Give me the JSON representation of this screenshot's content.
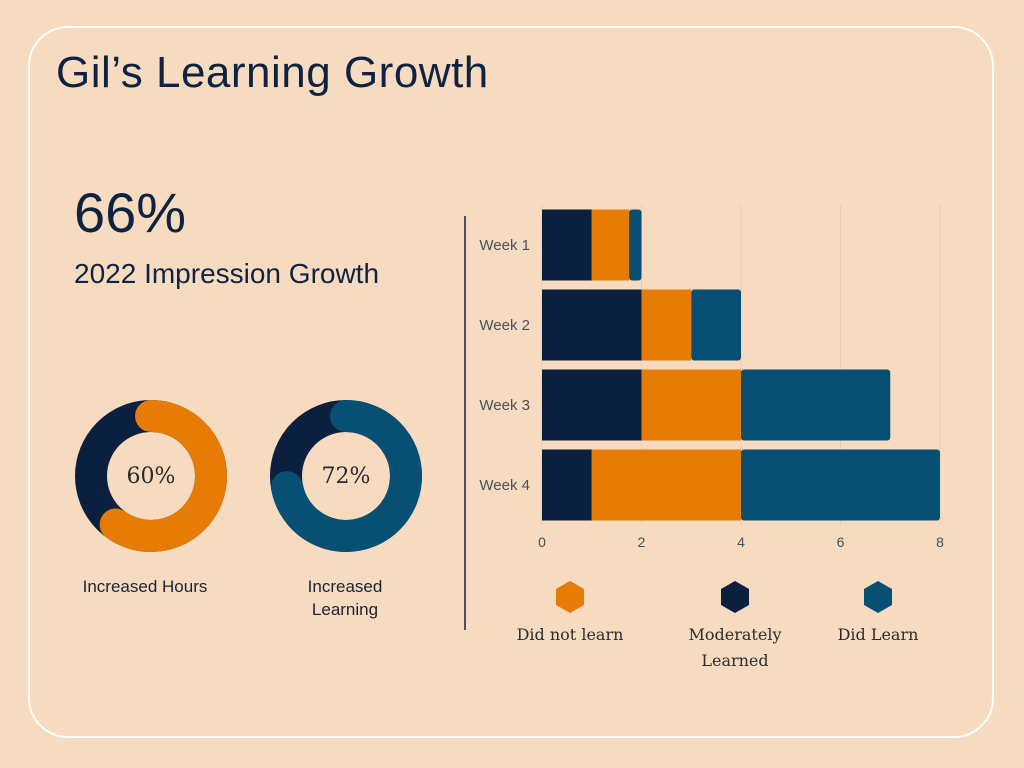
{
  "header": {
    "title": "Gil’s Learning Growth"
  },
  "highlight": {
    "value": "66%",
    "label": "2022 Impression Growth"
  },
  "donuts": [
    {
      "value_text": "60%",
      "fraction": 0.6,
      "caption": "Increased Hours",
      "color": "#e67c05"
    },
    {
      "value_text": "72%",
      "fraction": 0.72,
      "caption": "Increased Learning",
      "color": "#084f74"
    }
  ],
  "colors": {
    "dark_navy": "#0b1f3f",
    "orange": "#e67c05",
    "teal": "#084f74",
    "background": "#f6dbc0",
    "grid": "#e8cdb2"
  },
  "chart_data": {
    "type": "bar",
    "orientation": "horizontal",
    "stacked": true,
    "categories": [
      "Week 1",
      "Week 2",
      "Week 3",
      "Week 4"
    ],
    "series": [
      {
        "name": "Moderately Learned",
        "color": "#0b1f3f",
        "values": [
          1,
          2,
          2,
          1
        ]
      },
      {
        "name": "Did not learn",
        "color": "#e67c05",
        "values": [
          0.75,
          1,
          2,
          3
        ]
      },
      {
        "name": "Did Learn",
        "color": "#084f74",
        "values": [
          0.25,
          1,
          3,
          4
        ]
      }
    ],
    "x_ticks": [
      "0",
      "2",
      "4",
      "6",
      "8"
    ],
    "xlim": [
      0,
      8
    ],
    "grid": true,
    "legend": [
      {
        "label": "Did not learn",
        "color": "#e67c05"
      },
      {
        "label": "Moderately Learned",
        "color": "#0b1f3f"
      },
      {
        "label": "Did Learn",
        "color": "#084f74"
      }
    ],
    "legend_position": "bottom"
  }
}
